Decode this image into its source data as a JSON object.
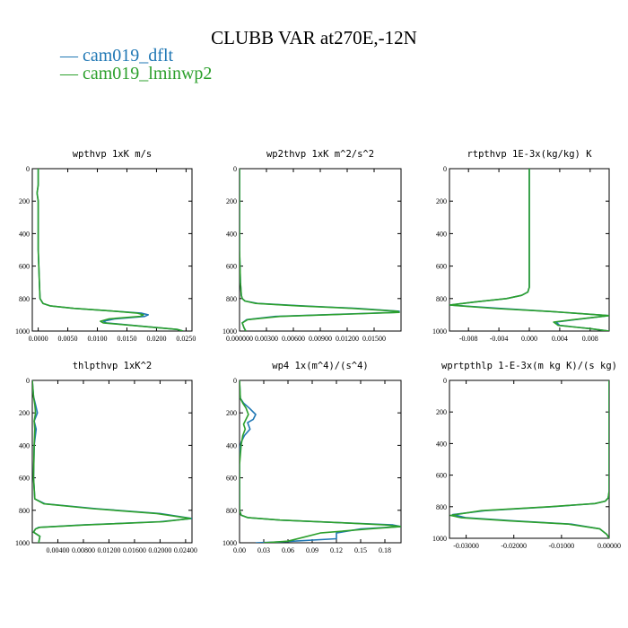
{
  "title": "CLUBB VAR at270E,-12N",
  "legend": [
    {
      "label": "— cam019_dflt",
      "color": "#1f77b4"
    },
    {
      "label": "— cam019_lminwp2",
      "color": "#2ca02c"
    }
  ],
  "chart_data": [
    {
      "type": "line",
      "title": "wpthvp   1xK m/s",
      "xlim": [
        -0.001,
        0.026
      ],
      "ylim": [
        1000,
        0
      ],
      "x_ticks": [
        0.0,
        0.005,
        0.01,
        0.015,
        0.02,
        0.025
      ],
      "x_tick_labels": [
        "0.0000",
        "0.0050",
        "0.0100",
        "0.0150",
        "0.0200",
        "0.0250"
      ],
      "y_ticks": [
        0,
        200,
        400,
        600,
        800,
        1000
      ],
      "y_tick_labels": [
        "0",
        "200",
        "400",
        "600",
        "800",
        "1000"
      ],
      "series": [
        {
          "name": "cam019_dflt",
          "color": "#1f77b4",
          "x": [
            0.0,
            0.0,
            -0.0002,
            0.0,
            0.0,
            0.0,
            0.0002,
            0.0003,
            0.0008,
            0.002,
            0.006,
            0.012,
            0.0175,
            0.0186,
            0.018,
            0.013,
            0.011,
            0.0115,
            0.016,
            0.0235,
            0.0245
          ],
          "y": [
            0,
            100,
            150,
            200,
            300,
            500,
            700,
            800,
            830,
            845,
            860,
            875,
            890,
            900,
            910,
            925,
            940,
            950,
            965,
            990,
            1000
          ]
        },
        {
          "name": "cam019_lminwp2",
          "color": "#2ca02c",
          "x": [
            0.0,
            0.0,
            -0.0002,
            0.0,
            0.0,
            0.0,
            0.0002,
            0.0003,
            0.0008,
            0.002,
            0.006,
            0.012,
            0.0168,
            0.0178,
            0.0172,
            0.012,
            0.0105,
            0.011,
            0.0158,
            0.0235,
            0.0245
          ],
          "y": [
            0,
            100,
            150,
            200,
            300,
            500,
            700,
            800,
            830,
            845,
            860,
            875,
            890,
            900,
            910,
            925,
            940,
            950,
            965,
            990,
            1000
          ]
        }
      ]
    },
    {
      "type": "line",
      "title": "wp2thvp   1xK m^2/s^2",
      "xlim": [
        0.0,
        0.018
      ],
      "ylim": [
        1000,
        0
      ],
      "x_ticks": [
        0.0,
        0.003,
        0.006,
        0.009,
        0.012,
        0.015
      ],
      "x_tick_labels": [
        "0.000000",
        "0.00300",
        "0.00600",
        "0.00900",
        "0.01200",
        "0.01500"
      ],
      "y_ticks": [
        0,
        200,
        400,
        600,
        800,
        1000
      ],
      "y_tick_labels": [
        "0",
        "200",
        "400",
        "600",
        "800",
        "1000"
      ],
      "series": [
        {
          "name": "cam019_dflt",
          "color": "#1f77b4",
          "x": [
            0.0,
            0.0,
            0.0,
            0.0001,
            0.0002,
            0.0003,
            0.0006,
            0.002,
            0.007,
            0.013,
            0.0178,
            0.0175,
            0.012,
            0.004,
            0.0008,
            0.0003,
            0.0005,
            0.0007
          ],
          "y": [
            0,
            200,
            500,
            700,
            780,
            800,
            815,
            830,
            845,
            860,
            878,
            885,
            895,
            910,
            930,
            950,
            980,
            1000
          ]
        },
        {
          "name": "cam019_lminwp2",
          "color": "#2ca02c",
          "x": [
            0.0,
            0.0,
            0.0,
            0.0001,
            0.0002,
            0.0003,
            0.0006,
            0.0018,
            0.0065,
            0.0125,
            0.0176,
            0.0178,
            0.0125,
            0.0045,
            0.0009,
            0.0003,
            0.0005,
            0.0007
          ],
          "y": [
            0,
            200,
            500,
            700,
            780,
            800,
            815,
            830,
            845,
            860,
            878,
            885,
            895,
            910,
            930,
            950,
            980,
            1000
          ]
        }
      ]
    },
    {
      "type": "line",
      "title": "rtpthvp   1E-3x(kg/kg) K",
      "xlim": [
        -0.0105,
        0.0105
      ],
      "ylim": [
        1000,
        0
      ],
      "x_ticks": [
        -0.008,
        -0.004,
        0.0,
        0.004,
        0.008
      ],
      "x_tick_labels": [
        "-0.008",
        "-0.004",
        "0.000",
        "0.004",
        "0.008"
      ],
      "y_ticks": [
        0,
        200,
        400,
        600,
        800,
        1000
      ],
      "y_tick_labels": [
        "0",
        "200",
        "400",
        "600",
        "800",
        "1000"
      ],
      "series": [
        {
          "name": "cam019_dflt",
          "color": "#1f77b4",
          "x": [
            0.0,
            0.0,
            0.0,
            -0.0002,
            -0.001,
            -0.003,
            -0.007,
            -0.0105,
            -0.004,
            0.003,
            0.0105,
            0.006,
            0.0035,
            0.004,
            0.008,
            0.0105
          ],
          "y": [
            0,
            400,
            730,
            760,
            780,
            800,
            820,
            840,
            860,
            880,
            905,
            930,
            945,
            965,
            985,
            1000
          ]
        },
        {
          "name": "cam019_lminwp2",
          "color": "#2ca02c",
          "x": [
            0.0,
            0.0,
            0.0,
            -0.0002,
            -0.001,
            -0.003,
            -0.007,
            -0.0105,
            -0.0042,
            0.003,
            0.0105,
            0.0058,
            0.0032,
            0.0038,
            0.008,
            0.0105
          ],
          "y": [
            0,
            400,
            730,
            760,
            780,
            800,
            820,
            840,
            862,
            880,
            905,
            930,
            945,
            965,
            985,
            1000
          ]
        }
      ]
    },
    {
      "type": "line",
      "title": "thlpthvp   1xK^2",
      "xlim": [
        0.0,
        0.025
      ],
      "ylim": [
        1000,
        0
      ],
      "x_ticks": [
        0.004,
        0.008,
        0.012,
        0.016,
        0.02,
        0.024
      ],
      "x_tick_labels": [
        "0.00400",
        "0.00800",
        "0.01200",
        "0.01600",
        "0.02000",
        "0.02400"
      ],
      "y_ticks": [
        0,
        200,
        400,
        600,
        800,
        1000
      ],
      "y_tick_labels": [
        "0",
        "200",
        "400",
        "600",
        "800",
        "1000"
      ],
      "series": [
        {
          "name": "cam019_dflt",
          "color": "#1f77b4",
          "x": [
            0.0,
            0.0002,
            0.0005,
            0.0008,
            0.0003,
            0.0006,
            0.0003,
            0.0002,
            0.0004,
            0.002,
            0.01,
            0.02,
            0.025,
            0.02,
            0.008,
            0.001,
            0.0005,
            0.0002,
            0.0012,
            0.001
          ],
          "y": [
            0,
            100,
            150,
            200,
            250,
            300,
            400,
            600,
            730,
            760,
            790,
            820,
            850,
            870,
            890,
            905,
            915,
            935,
            960,
            1000
          ]
        },
        {
          "name": "cam019_lminwp2",
          "color": "#2ca02c",
          "x": [
            0.0,
            0.0002,
            0.0004,
            0.0005,
            0.0003,
            0.0004,
            0.0003,
            0.0002,
            0.0004,
            0.0018,
            0.0095,
            0.0195,
            0.0248,
            0.0205,
            0.0085,
            0.0012,
            0.0005,
            0.0002,
            0.0012,
            0.001
          ],
          "y": [
            0,
            100,
            150,
            200,
            250,
            300,
            400,
            600,
            730,
            760,
            790,
            820,
            850,
            870,
            890,
            905,
            915,
            935,
            960,
            1000
          ]
        }
      ]
    },
    {
      "type": "line",
      "title": "wp4   1x(m^4)/(s^4)",
      "xlim": [
        0.0,
        0.2
      ],
      "ylim": [
        1000,
        0
      ],
      "x_ticks": [
        0.0,
        0.03,
        0.06,
        0.09,
        0.12,
        0.15,
        0.18
      ],
      "x_tick_labels": [
        "0.00",
        "0.03",
        "0.06",
        "0.09",
        "0.12",
        "0.15",
        "0.18"
      ],
      "y_ticks": [
        0,
        200,
        400,
        600,
        800,
        1000
      ],
      "y_tick_labels": [
        "0",
        "200",
        "400",
        "600",
        "800",
        "1000"
      ],
      "series": [
        {
          "name": "cam019_dflt",
          "color": "#1f77b4",
          "x": [
            0.0,
            0.001,
            0.005,
            0.012,
            0.02,
            0.017,
            0.01,
            0.013,
            0.006,
            0.002,
            0.0,
            0.0,
            0.0,
            0.002,
            0.01,
            0.05,
            0.12,
            0.19,
            0.2,
            0.15,
            0.12,
            0.12,
            0.05,
            0.02
          ],
          "y": [
            0,
            110,
            140,
            170,
            210,
            240,
            260,
            300,
            340,
            380,
            430,
            600,
            800,
            830,
            845,
            860,
            875,
            890,
            900,
            915,
            940,
            975,
            995,
            1000
          ]
        },
        {
          "name": "cam019_lminwp2",
          "color": "#2ca02c",
          "x": [
            0.0,
            0.001,
            0.004,
            0.008,
            0.011,
            0.008,
            0.005,
            0.007,
            0.004,
            0.002,
            0.001,
            0.0,
            0.0,
            0.0,
            0.002,
            0.01,
            0.05,
            0.12,
            0.18,
            0.2,
            0.16,
            0.1,
            0.08,
            0.06,
            0.03
          ],
          "y": [
            0,
            110,
            140,
            170,
            210,
            240,
            270,
            300,
            340,
            400,
            460,
            520,
            600,
            800,
            830,
            845,
            860,
            875,
            890,
            900,
            915,
            940,
            965,
            990,
            1000
          ]
        }
      ]
    },
    {
      "type": "line",
      "title": "wprtpthlp   1-E-3x(m kg K)/(s kg)",
      "xlim": [
        -0.0335,
        0.0
      ],
      "ylim": [
        1000,
        0
      ],
      "x_ticks": [
        -0.03,
        -0.02,
        -0.01,
        0.0
      ],
      "x_tick_labels": [
        "-0.03000",
        "-0.02000",
        "-0.01000",
        "0.00000"
      ],
      "y_ticks": [
        0,
        200,
        400,
        600,
        800,
        1000
      ],
      "y_tick_labels": [
        "0",
        "200",
        "400",
        "600",
        "800",
        "1000"
      ],
      "series": [
        {
          "name": "cam019_dflt",
          "color": "#1f77b4",
          "x": [
            0.0,
            0.0,
            -0.0002,
            -0.0008,
            -0.003,
            -0.012,
            -0.026,
            -0.0328,
            -0.03,
            -0.02,
            -0.008,
            -0.002,
            -0.0005,
            0.0
          ],
          "y": [
            0,
            700,
            745,
            765,
            780,
            800,
            825,
            850,
            870,
            890,
            910,
            940,
            975,
            1000
          ]
        },
        {
          "name": "cam019_lminwp2",
          "color": "#2ca02c",
          "x": [
            0.0,
            0.0,
            -0.0002,
            -0.0008,
            -0.003,
            -0.0125,
            -0.0268,
            -0.0333,
            -0.031,
            -0.021,
            -0.0085,
            -0.002,
            -0.0005,
            0.0
          ],
          "y": [
            0,
            700,
            745,
            765,
            780,
            800,
            825,
            855,
            870,
            890,
            910,
            940,
            975,
            1000
          ]
        }
      ]
    }
  ]
}
